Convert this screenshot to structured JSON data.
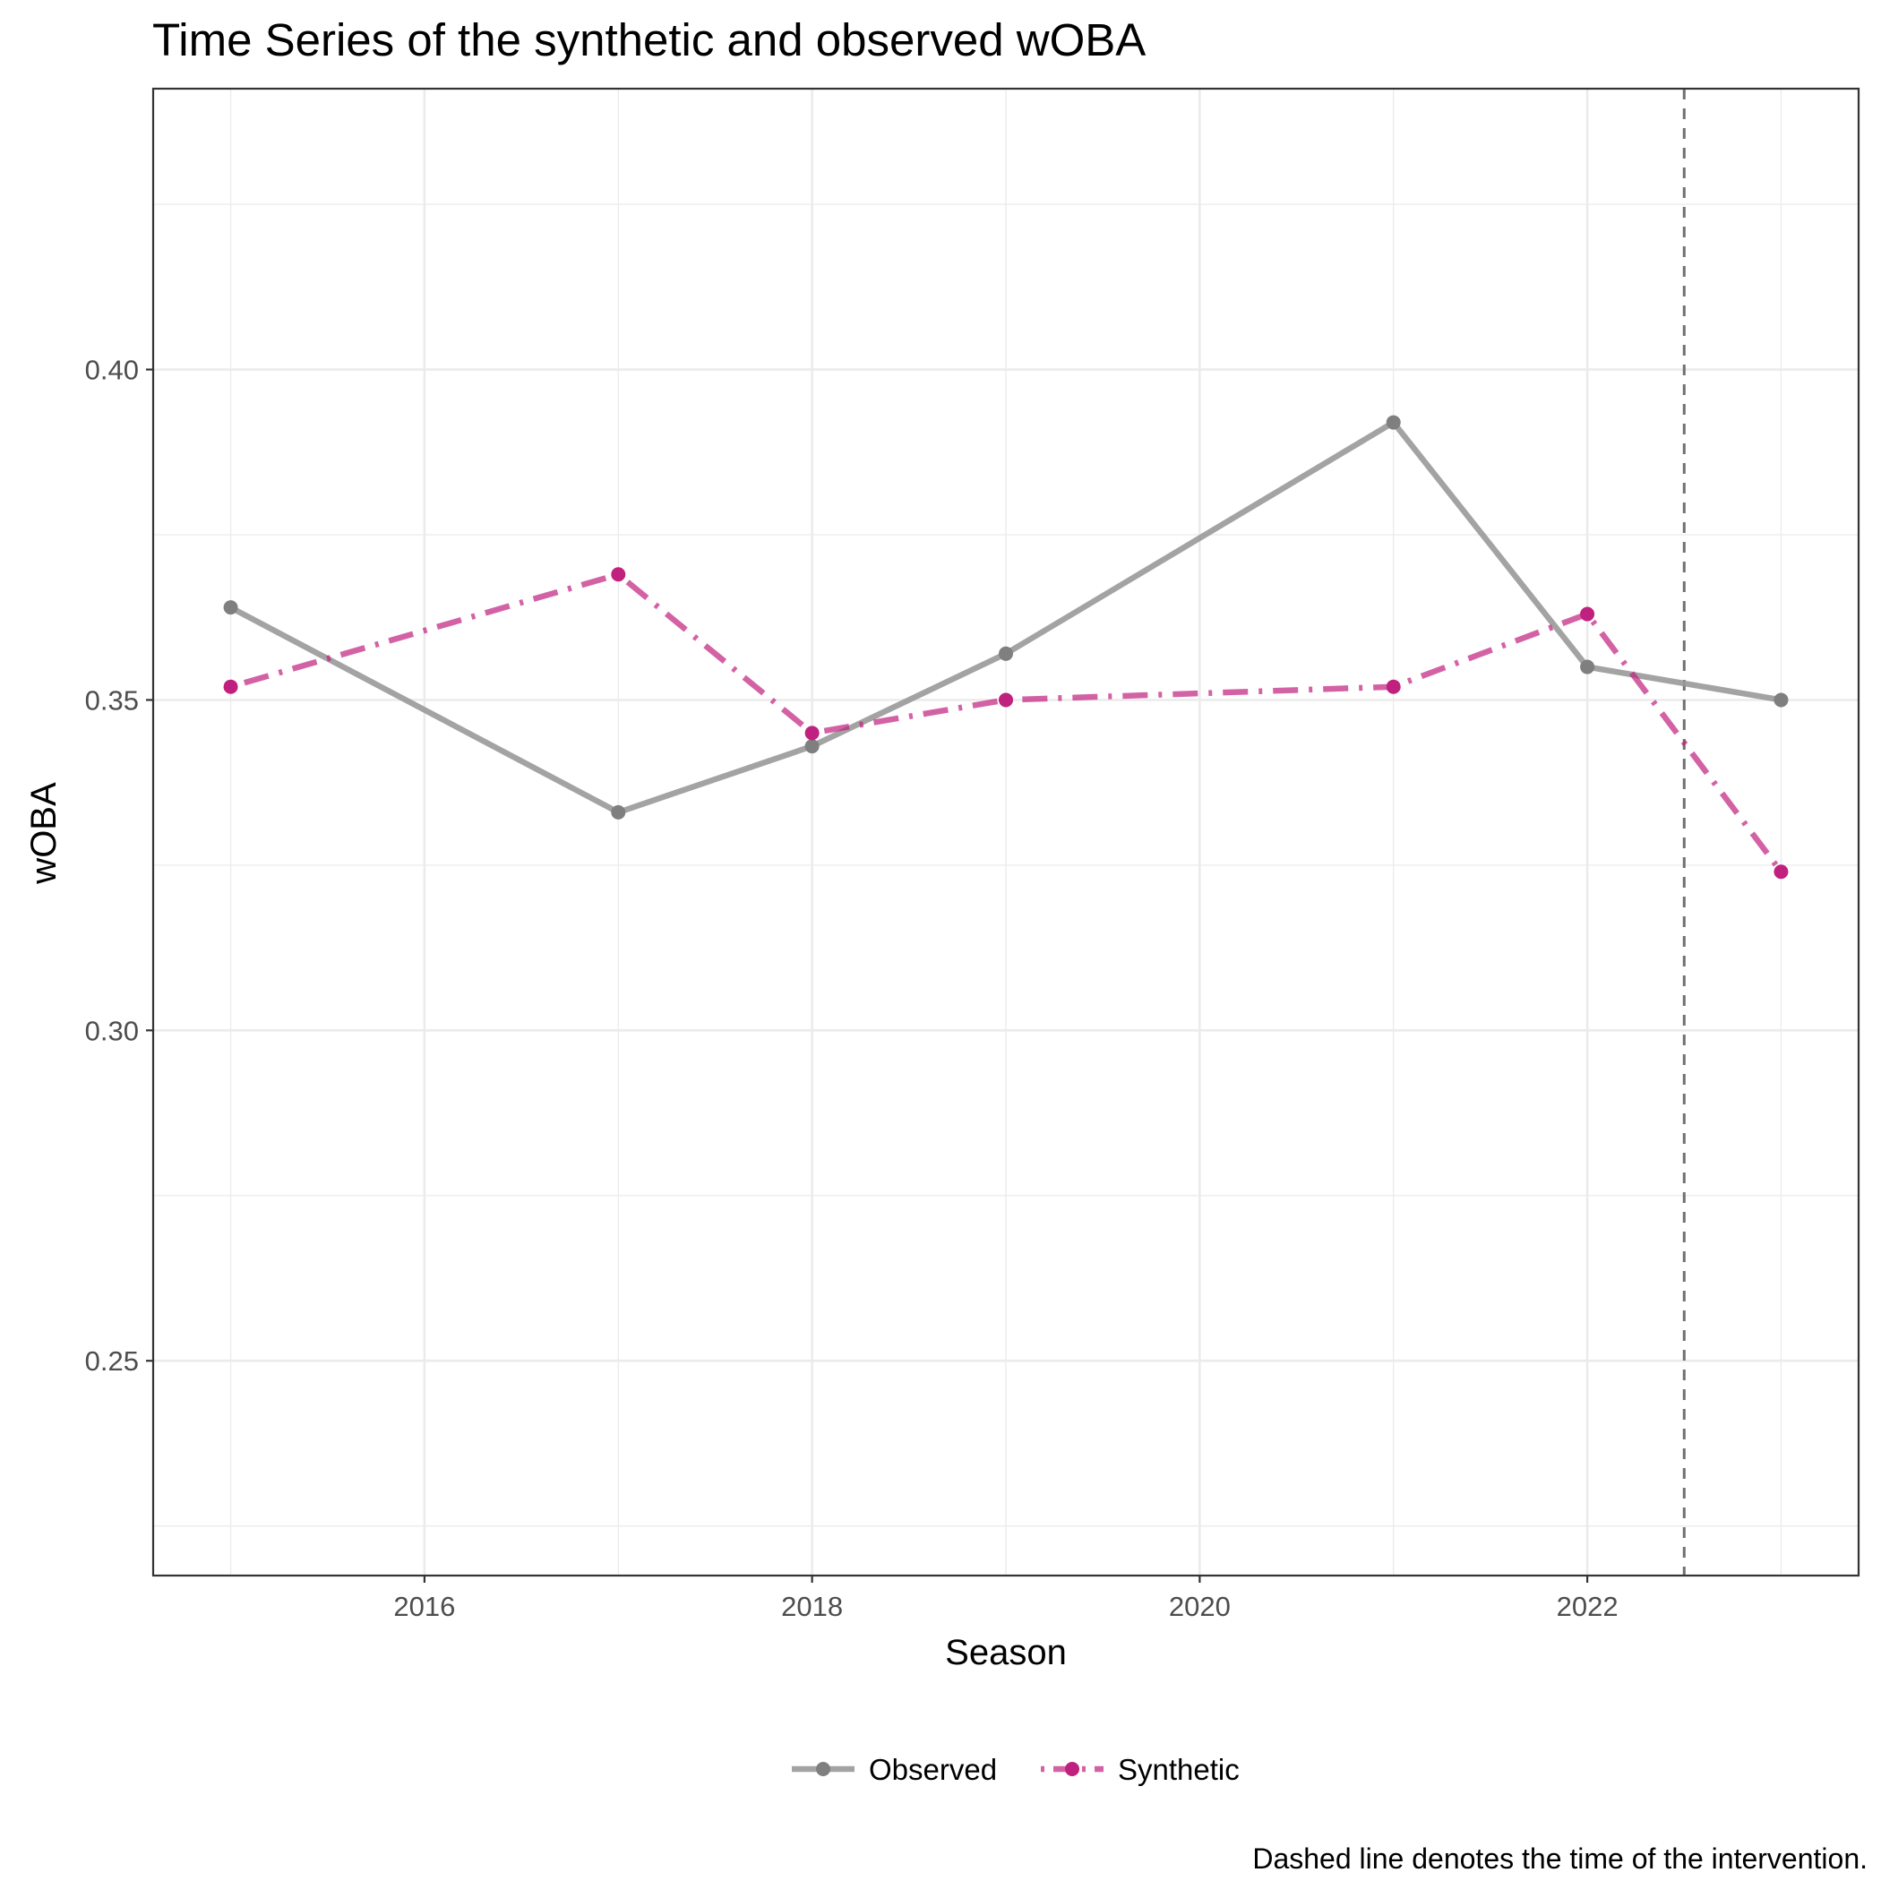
{
  "chart_data": {
    "type": "line",
    "title": "Time Series of the synthetic and observed wOBA",
    "xlabel": "Season",
    "ylabel": "wOBA",
    "caption": "Dashed line denotes the time of the intervention.",
    "x": [
      2015,
      2017,
      2018,
      2019,
      2021,
      2022,
      2023
    ],
    "xlim": [
      2014.6,
      2023.4
    ],
    "ylim": [
      0.2175,
      0.4425
    ],
    "x_ticks": [
      2016,
      2018,
      2020,
      2022
    ],
    "x_tick_labels": [
      "2016",
      "2018",
      "2020",
      "2022"
    ],
    "y_ticks": [
      0.25,
      0.3,
      0.35,
      0.4
    ],
    "y_tick_labels": [
      "0.25",
      "0.30",
      "0.35",
      "0.40"
    ],
    "grid": true,
    "intervention_x": 2022.5,
    "legend_position": "bottom",
    "series": [
      {
        "name": "Observed",
        "color": "#999999",
        "line_style": "solid",
        "values": [
          0.364,
          0.333,
          0.343,
          0.357,
          0.392,
          0.355,
          0.35
        ]
      },
      {
        "name": "Synthetic",
        "color": "#c0207e",
        "line_style": "dotdash",
        "values": [
          0.352,
          0.369,
          0.345,
          0.35,
          0.352,
          0.363,
          0.324
        ]
      }
    ]
  }
}
